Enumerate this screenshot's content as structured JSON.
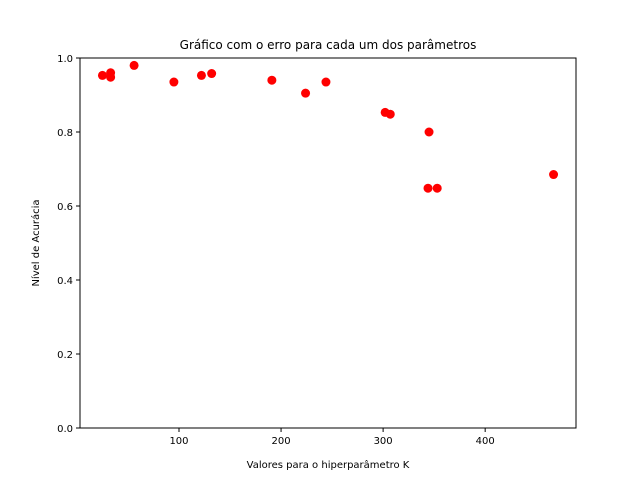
{
  "chart_data": {
    "type": "scatter",
    "title": "Gráfico com o erro para cada um dos parâmetros",
    "xlabel": "Valores para o hiperparâmetro K",
    "ylabel": "Nível de Acurácia",
    "xlim": [
      3,
      489
    ],
    "ylim": [
      0,
      1
    ],
    "xticks": [
      100,
      200,
      300,
      400
    ],
    "yticks": [
      0.0,
      0.2,
      0.4,
      0.6,
      0.8,
      1.0
    ],
    "xtick_labels": [
      "100",
      "200",
      "300",
      "400"
    ],
    "ytick_labels": [
      "0.0",
      "0.2",
      "0.4",
      "0.6",
      "0.8",
      "1.0"
    ],
    "grid": false,
    "marker_color": "#ff0000",
    "series": [
      {
        "points": [
          {
            "x": 25,
            "y": 0.953
          },
          {
            "x": 33,
            "y": 0.96
          },
          {
            "x": 33,
            "y": 0.948
          },
          {
            "x": 56,
            "y": 0.98
          },
          {
            "x": 95,
            "y": 0.935
          },
          {
            "x": 122,
            "y": 0.953
          },
          {
            "x": 132,
            "y": 0.958
          },
          {
            "x": 191,
            "y": 0.94
          },
          {
            "x": 224,
            "y": 0.905
          },
          {
            "x": 244,
            "y": 0.935
          },
          {
            "x": 302,
            "y": 0.853
          },
          {
            "x": 307,
            "y": 0.848
          },
          {
            "x": 345,
            "y": 0.8
          },
          {
            "x": 344,
            "y": 0.648
          },
          {
            "x": 353,
            "y": 0.648
          },
          {
            "x": 467,
            "y": 0.685
          }
        ]
      }
    ]
  }
}
